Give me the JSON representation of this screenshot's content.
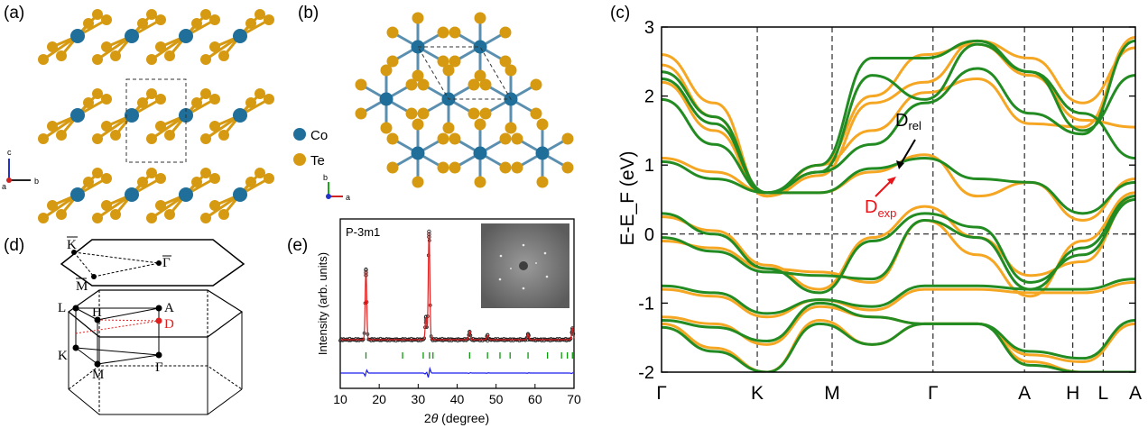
{
  "panels": {
    "a": {
      "label": "(a)",
      "axes": {
        "c": "c",
        "a": "a",
        "b": "b"
      }
    },
    "b": {
      "label": "(b)",
      "legend": [
        {
          "symbol": "Co",
          "color": "#1f6f9a"
        },
        {
          "symbol": "Te",
          "color": "#d69a12"
        }
      ],
      "axes": {
        "b": "b",
        "a": "a"
      }
    },
    "c": {
      "label": "(c)"
    },
    "d": {
      "label": "(d)",
      "points": {
        "K_bar": "K",
        "Gamma_bar": "Γ",
        "M_bar": "M",
        "L": "L",
        "H": "H",
        "A": "A",
        "D": "D",
        "K": "K",
        "M": "M",
        "Gamma": "Γ"
      }
    },
    "e": {
      "label": "(e)"
    }
  },
  "colors": {
    "co_atom": "#1f6f9a",
    "te_atom": "#d69a12",
    "band_orange": "#f5a623",
    "band_green": "#228b22",
    "fit_red": "#e02020",
    "diff_blue": "#1a1aee",
    "bragg_green": "#0a9a0a",
    "annot_red": "#e8141a"
  },
  "chart_data": [
    {
      "type": "line",
      "title": "",
      "ylabel": "E-E_F (eV)",
      "ylim": [
        -2,
        3
      ],
      "yticks": [
        "-2",
        "-1",
        "0",
        "1",
        "2",
        "3"
      ],
      "kpath": [
        "Γ",
        "K",
        "M",
        "Γ",
        "A",
        "H",
        "L",
        "A"
      ],
      "kpos": [
        0,
        0.202,
        0.36,
        0.573,
        0.766,
        0.868,
        0.932,
        1.0
      ],
      "annotations": [
        {
          "base": "D",
          "sub": "rel",
          "color": "#000000"
        },
        {
          "base": "D",
          "sub": "exp",
          "color": "#e8141a"
        }
      ],
      "series": [
        {
          "name": "orange",
          "color": "#f5a623",
          "bands": [
            [
              2.6,
              1.9,
              0.55,
              1.0,
              2.0,
              2.6,
              2.75,
              2.3,
              1.65,
              1.55
            ],
            [
              2.45,
              1.7,
              0.55,
              0.85,
              1.9,
              2.2,
              2.8,
              2.55,
              1.9,
              2.7
            ],
            [
              2.2,
              1.5,
              0.55,
              1.0,
              1.5,
              2.05,
              2.25,
              1.6,
              1.55,
              2.85
            ],
            [
              1.1,
              0.9,
              0.6,
              0.6,
              0.9,
              1.15,
              0.55,
              0.75,
              0.2,
              0.8
            ],
            [
              0.25,
              0.05,
              -0.45,
              -0.8,
              -0.05,
              0.4,
              -0.05,
              -0.6,
              -0.4,
              0.55
            ],
            [
              -0.1,
              -0.2,
              -0.5,
              -0.55,
              -0.7,
              0.2,
              -0.3,
              -0.9,
              -0.1,
              0.6
            ],
            [
              -0.8,
              -0.9,
              -1.2,
              -0.95,
              -1.1,
              -0.8,
              -0.8,
              -0.85,
              -0.85,
              -0.7
            ],
            [
              -1.2,
              -1.3,
              -1.6,
              -1.05,
              -1.2,
              -1.3,
              -1.3,
              -1.75,
              -1.85,
              -1.3
            ],
            [
              -1.3,
              -1.65,
              -2.0,
              -1.25,
              -1.6,
              -1.3,
              -1.3,
              -1.85,
              -2.0,
              -2.0
            ]
          ]
        },
        {
          "name": "green",
          "color": "#228b22",
          "bands": [
            [
              2.35,
              1.7,
              0.6,
              1.0,
              2.55,
              2.55,
              2.8,
              2.35,
              1.75,
              1.1
            ],
            [
              2.25,
              1.6,
              0.6,
              0.9,
              2.3,
              1.95,
              2.75,
              2.35,
              1.5,
              2.3
            ],
            [
              1.95,
              1.3,
              0.6,
              0.9,
              1.3,
              1.9,
              2.4,
              1.75,
              1.45,
              2.8
            ],
            [
              1.05,
              0.8,
              0.6,
              0.6,
              0.95,
              1.1,
              0.8,
              0.75,
              0.3,
              0.75
            ],
            [
              0.3,
              0.0,
              -0.5,
              -0.85,
              -0.1,
              0.3,
              0.1,
              -0.7,
              -0.3,
              0.5
            ],
            [
              -0.05,
              -0.25,
              -0.55,
              -0.6,
              -0.65,
              0.2,
              -0.05,
              -0.8,
              -0.2,
              0.55
            ],
            [
              -0.75,
              -0.85,
              -1.15,
              -0.95,
              -1.05,
              -0.75,
              -0.75,
              -0.8,
              -0.8,
              -0.65
            ],
            [
              -1.25,
              -1.35,
              -1.55,
              -1.0,
              -1.2,
              -1.3,
              -1.3,
              -1.7,
              -1.8,
              -1.25
            ],
            [
              -1.35,
              -1.7,
              -2.0,
              -1.3,
              -1.6,
              -1.3,
              -1.3,
              -1.9,
              -2.0,
              -2.0
            ]
          ]
        }
      ]
    },
    {
      "type": "scatter",
      "title": "P-3m1",
      "xlabel_italic": "θ",
      "xlabel_pre": "2",
      "xlabel_post": " (degree)",
      "ylabel": "Intensity (arb. units)",
      "xlim": [
        10,
        70
      ],
      "xticks": [
        "10",
        "20",
        "30",
        "40",
        "50",
        "60",
        "70"
      ],
      "peaks": [
        {
          "x": 16.6,
          "height": 0.62
        },
        {
          "x": 32.0,
          "height": 0.2
        },
        {
          "x": 32.8,
          "height": 0.96
        },
        {
          "x": 43.2,
          "height": 0.07
        },
        {
          "x": 47.8,
          "height": 0.04
        },
        {
          "x": 58.2,
          "height": 0.05
        },
        {
          "x": 69.6,
          "height": 0.1
        }
      ],
      "bragg_positions": [
        16.6,
        26.0,
        31.3,
        32.9,
        33.8,
        43.2,
        47.8,
        51.0,
        53.6,
        58.2,
        63.2,
        66.8,
        68.3,
        69.6
      ]
    }
  ]
}
